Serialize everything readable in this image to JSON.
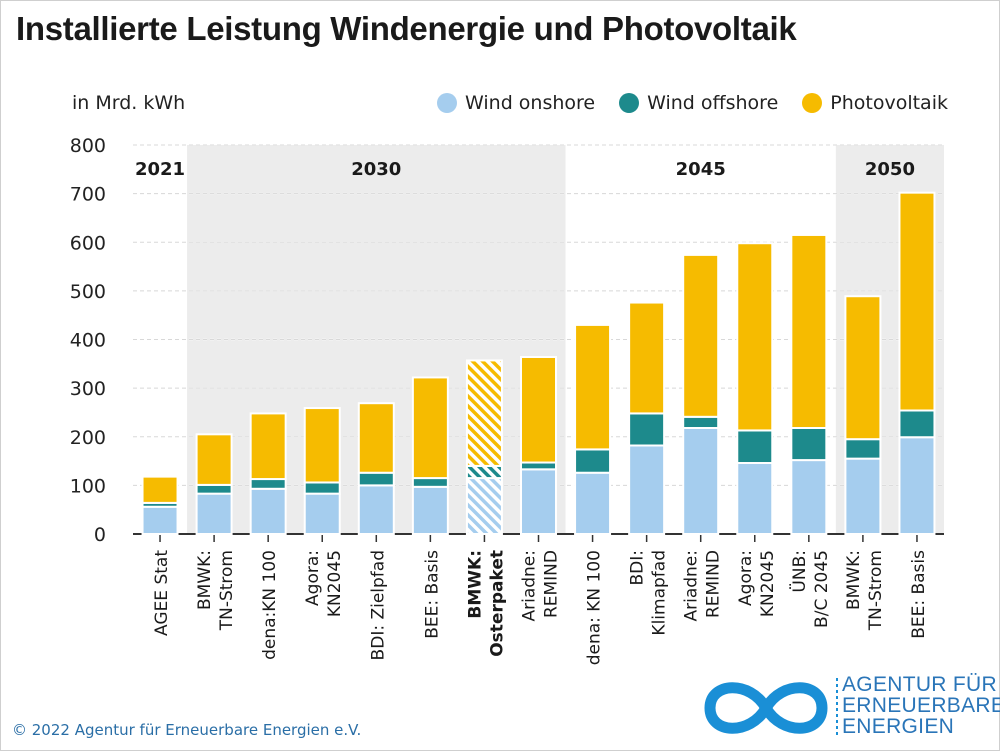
{
  "title": "Installierte Leistung Windenergie und Photovoltaik",
  "unit_label": "in Mrd. kWh",
  "legend": [
    {
      "name": "Wind onshore",
      "color": "#a5cdee"
    },
    {
      "name": "Wind offshore",
      "color": "#1d8a8c"
    },
    {
      "name": "Photovoltaik",
      "color": "#f6bb00"
    }
  ],
  "footer": "© 2022 Agentur für Erneuerbare Energien e.V.",
  "logo": {
    "line1": "AGENTUR FÜR",
    "line2": "ERNEUERBARE",
    "line3": "ENERGIEN"
  },
  "chart_data": {
    "type": "bar",
    "stacked": true,
    "ylim": [
      0,
      800
    ],
    "yticks": [
      0,
      100,
      200,
      300,
      400,
      500,
      600,
      700,
      800
    ],
    "groups": [
      {
        "label": "2021",
        "from": 0,
        "to": 0,
        "shaded": false
      },
      {
        "label": "2030",
        "from": 1,
        "to": 7,
        "shaded": true
      },
      {
        "label": "2045",
        "from": 8,
        "to": 12,
        "shaded": false
      },
      {
        "label": "2050",
        "from": 13,
        "to": 14,
        "shaded": true
      }
    ],
    "categories": [
      [
        "AGEE Stat"
      ],
      [
        "BMWK:",
        "TN-Strom"
      ],
      [
        "dena:KN 100"
      ],
      [
        "Agora:",
        "KN2045"
      ],
      [
        "BDI: Zielpfad"
      ],
      [
        "BEE: Basis"
      ],
      [
        "BMWK:",
        "Osterpaket"
      ],
      [
        "Ariadne:",
        "REMIND"
      ],
      [
        "dena: KN 100"
      ],
      [
        "BDI:",
        "Klimapfad"
      ],
      [
        "Ariadne:",
        "REMIND"
      ],
      [
        "Agora:",
        "KN2045"
      ],
      [
        "ÜNB:",
        "B/C 2045"
      ],
      [
        "BMWK:",
        "TN-Strom"
      ],
      [
        "BEE: Basis"
      ]
    ],
    "bold_category": 6,
    "hatched_category": 6,
    "series": [
      {
        "name": "Wind onshore",
        "values": [
          56,
          83,
          93,
          83,
          100,
          97,
          115,
          133,
          126,
          182,
          218,
          146,
          152,
          155,
          199
        ]
      },
      {
        "name": "Wind offshore",
        "values": [
          8,
          18,
          20,
          23,
          26,
          18,
          25,
          14,
          48,
          66,
          23,
          67,
          66,
          40,
          55
        ]
      },
      {
        "name": "Photovoltaik",
        "values": [
          54,
          104,
          135,
          153,
          143,
          207,
          217,
          217,
          256,
          228,
          333,
          385,
          397,
          294,
          448
        ]
      }
    ]
  }
}
